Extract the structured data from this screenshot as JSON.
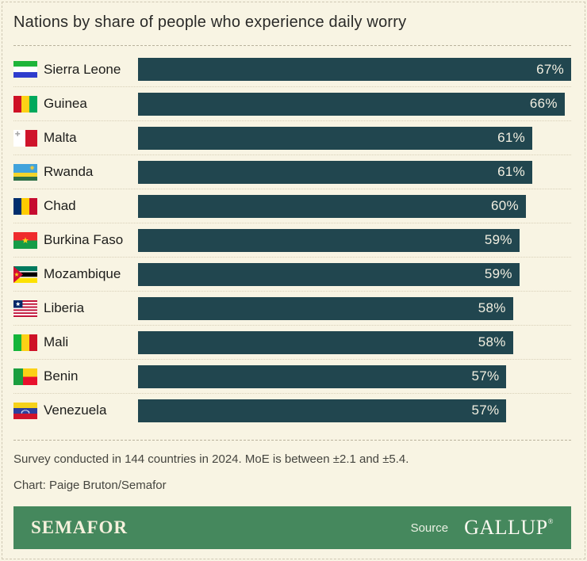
{
  "chart_data": {
    "type": "bar",
    "orientation": "horizontal",
    "title": "Nations by share of people who experience daily worry",
    "categories": [
      "Sierra Leone",
      "Guinea",
      "Malta",
      "Rwanda",
      "Chad",
      "Burkina Faso",
      "Mozambique",
      "Liberia",
      "Mali",
      "Benin",
      "Venezuela"
    ],
    "values": [
      67,
      66,
      61,
      61,
      60,
      59,
      59,
      58,
      58,
      57,
      57
    ],
    "value_suffix": "%",
    "xlim": [
      0,
      67
    ],
    "grid": false,
    "legend": false,
    "bar_color": "#21464f",
    "value_text_color": "#f2efe1",
    "flags": [
      {
        "kind": "hstripes",
        "colors": [
          "#1eb53a",
          "#ffffff",
          "#2f3dcd"
        ]
      },
      {
        "kind": "vstripes",
        "colors": [
          "#ce1126",
          "#fcd116",
          "#00a95c"
        ]
      },
      {
        "kind": "malta",
        "colors": [
          "#ffffff",
          "#cf142b",
          "#a9a9a9"
        ]
      },
      {
        "kind": "rwanda",
        "colors": [
          "#41a3dc",
          "#f4d42b",
          "#2f7046",
          "#efc93c"
        ]
      },
      {
        "kind": "vstripes",
        "colors": [
          "#002e6d",
          "#fecb00",
          "#c60c30"
        ]
      },
      {
        "kind": "bicolor-star",
        "colors": [
          "#ef2b2d",
          "#159c46",
          "#fcd116"
        ]
      },
      {
        "kind": "mozambique",
        "colors": [
          "#007a5e",
          "#000000",
          "#fce100",
          "#ffffff",
          "#d21034",
          "#fcd116"
        ]
      },
      {
        "kind": "liberia",
        "colors": [
          "#bf0a30",
          "#ffffff",
          "#002868"
        ]
      },
      {
        "kind": "vstripes",
        "colors": [
          "#14b53a",
          "#fcd116",
          "#ce1126"
        ]
      },
      {
        "kind": "benin",
        "colors": [
          "#1b9e3f",
          "#fcd116",
          "#e8112d"
        ]
      },
      {
        "kind": "venezuela",
        "colors": [
          "#f5d21b",
          "#2c3f9e",
          "#cf142b",
          "#ffffff"
        ]
      }
    ]
  },
  "notes": {
    "line1": "Survey conducted in 144 countries in 2024. MoE is between ±2.1 and ±5.4.",
    "line2": "Chart: Paige Bruton/Semafor"
  },
  "footer": {
    "brand": "SEMAFOR",
    "source_label": "Source",
    "source_name": "GALLUP",
    "registered_mark": "®",
    "background": "#45885d"
  },
  "colors": {
    "page_background": "#f8f4e3",
    "frame_dash": "#cfc8b3",
    "separator_dash": "#b9b29c",
    "row_dot": "#d8d0b8",
    "title_text": "#2a2a28",
    "note_text": "#45453f"
  }
}
